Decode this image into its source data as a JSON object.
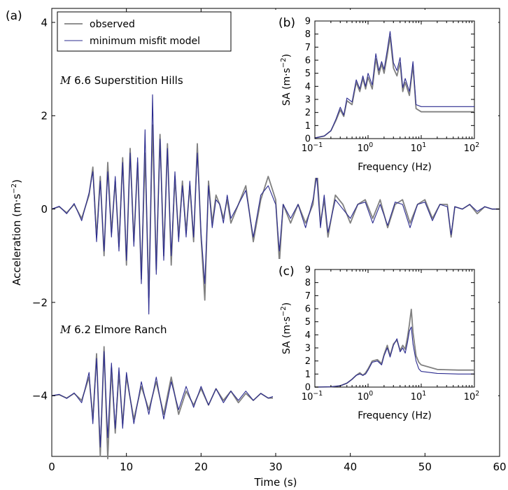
{
  "chart_data": [
    {
      "type": "line",
      "panel_label": "(a)",
      "xlabel": "Time (s)",
      "ylabel_base": "Acceleration (m·s",
      "ylabel_exp": "−2",
      "ylabel_close": ")",
      "xlim": [
        0,
        60
      ],
      "ylim": [
        -5.3,
        4.3
      ],
      "xticks": [
        0,
        10,
        20,
        30,
        40,
        50,
        60
      ],
      "yticks": [
        4,
        2,
        0,
        -2,
        -4
      ],
      "ytick_labels": [
        "4",
        "2",
        "0",
        "−2",
        "−4"
      ],
      "legend": {
        "placement": "top-left",
        "entries": [
          "observed",
          "minimum misfit model"
        ]
      },
      "annotations": [
        {
          "italic": "M",
          "text": " 6.6 Superstition Hills"
        },
        {
          "italic": "M",
          "text": " 6.2 Elmore Ranch"
        }
      ],
      "series": [
        {
          "name": "observed",
          "color": "#808080",
          "record": "Superstition Hills",
          "x": [
            0,
            1,
            2,
            3,
            4,
            5,
            5.5,
            6,
            6.5,
            7,
            7.5,
            8,
            8.5,
            9,
            9.5,
            10,
            10.5,
            11,
            11.5,
            12,
            12.5,
            13,
            13.5,
            14,
            14.5,
            15,
            15.5,
            16,
            16.5,
            17,
            17.5,
            18,
            18.5,
            19,
            19.5,
            20,
            20.5,
            21,
            21.5,
            22,
            22.5,
            23,
            23.5,
            24,
            25,
            26,
            27,
            28,
            29,
            30,
            30.5,
            31,
            32,
            33,
            34,
            35,
            35.5,
            36,
            36.5,
            37,
            38,
            39,
            40,
            41,
            42,
            43,
            44,
            45,
            46,
            47,
            48,
            49,
            50,
            51,
            52,
            53,
            53.5,
            54,
            55,
            56,
            57,
            58,
            59,
            60
          ],
          "y": [
            0,
            0.05,
            -0.08,
            0.1,
            -0.2,
            0.3,
            0.9,
            -0.6,
            0.7,
            -1.0,
            1.0,
            -0.5,
            0.6,
            -0.8,
            1.1,
            -1.2,
            1.3,
            -0.7,
            1.0,
            -1.5,
            1.2,
            -1.9,
            1.8,
            -1.3,
            1.6,
            -1.0,
            1.4,
            -1.2,
            0.7,
            -0.6,
            0.6,
            -0.5,
            0.5,
            -0.7,
            1.4,
            -0.6,
            -1.95,
            0.6,
            -0.3,
            0.3,
            0.1,
            -0.2,
            0.2,
            -0.3,
            0.1,
            0.5,
            -0.7,
            0.2,
            0.7,
            0.2,
            -1.15,
            0.1,
            -0.3,
            0.1,
            -0.3,
            0.1,
            0.9,
            -0.3,
            0.2,
            -0.6,
            0.3,
            0.1,
            -0.3,
            0.1,
            0.2,
            -0.2,
            0.2,
            -0.4,
            0.1,
            0.2,
            -0.3,
            0.1,
            0.2,
            -0.2,
            0.1,
            0.1,
            -0.6,
            0.05,
            0.0,
            0.1,
            -0.1,
            0.05,
            0.0,
            0.0
          ]
        },
        {
          "name": "minimum misfit model",
          "color": "#2b2b8f",
          "record": "Superstition Hills",
          "x": [
            0,
            1,
            2,
            3,
            4,
            5,
            5.5,
            6,
            6.5,
            7,
            7.5,
            8,
            8.5,
            9,
            9.5,
            10,
            10.5,
            11,
            11.5,
            12,
            12.5,
            13,
            13.5,
            14,
            14.5,
            15,
            15.5,
            16,
            16.5,
            17,
            17.5,
            18,
            18.5,
            19,
            19.5,
            20,
            20.5,
            21,
            21.5,
            22,
            22.5,
            23,
            23.5,
            24,
            25,
            26,
            27,
            28,
            29,
            30,
            30.5,
            31,
            32,
            33,
            34,
            35,
            35.5,
            36,
            36.5,
            37,
            38,
            39,
            40,
            41,
            42,
            43,
            44,
            45,
            46,
            47,
            48,
            49,
            50,
            51,
            52,
            53,
            53.5,
            54,
            55,
            56,
            57,
            58,
            59,
            60
          ],
          "y": [
            0,
            0.06,
            -0.1,
            0.12,
            -0.25,
            0.35,
            0.8,
            -0.7,
            0.6,
            -0.9,
            0.8,
            -0.6,
            0.7,
            -0.9,
            1.0,
            -1.1,
            1.2,
            -0.8,
            1.1,
            -1.6,
            1.7,
            -2.25,
            2.45,
            -1.4,
            1.5,
            -1.1,
            1.3,
            -1.0,
            0.8,
            -0.7,
            0.5,
            -0.6,
            0.6,
            -0.6,
            1.2,
            -0.5,
            -1.6,
            0.5,
            -0.4,
            0.2,
            0.1,
            -0.3,
            0.3,
            -0.2,
            0.1,
            0.4,
            -0.6,
            0.3,
            0.5,
            0.1,
            -0.9,
            0.1,
            -0.2,
            0.1,
            -0.4,
            0.2,
            0.7,
            -0.4,
            0.3,
            -0.5,
            0.2,
            0.0,
            -0.2,
            0.1,
            0.15,
            -0.3,
            0.1,
            -0.35,
            0.15,
            0.1,
            -0.4,
            0.1,
            0.15,
            -0.25,
            0.1,
            0.05,
            -0.55,
            0.05,
            0.0,
            0.1,
            -0.05,
            0.05,
            0.0,
            0.0
          ]
        },
        {
          "name": "observed",
          "color": "#808080",
          "record": "Elmore Ranch",
          "x": [
            0,
            1,
            2,
            3,
            4,
            5,
            5.5,
            6,
            6.5,
            7,
            7.5,
            8,
            8.5,
            9,
            9.5,
            10,
            11,
            12,
            13,
            14,
            15,
            16,
            17,
            18,
            19,
            20,
            21,
            22,
            23,
            24,
            25,
            26,
            27,
            28,
            29,
            30
          ],
          "y": [
            -4.0,
            -3.98,
            -4.05,
            -3.95,
            -4.1,
            -3.6,
            -4.5,
            -3.1,
            -5.3,
            -2.95,
            -5.35,
            -3.4,
            -4.8,
            -3.5,
            -4.6,
            -3.6,
            -4.5,
            -3.8,
            -4.3,
            -3.7,
            -4.4,
            -3.6,
            -4.4,
            -3.9,
            -4.2,
            -3.85,
            -4.2,
            -3.85,
            -4.1,
            -3.9,
            -4.15,
            -3.95,
            -4.1,
            -3.95,
            -4.05,
            -4.05
          ]
        },
        {
          "name": "minimum misfit model",
          "color": "#2b2b8f",
          "record": "Elmore Ranch",
          "x": [
            0,
            1,
            2,
            3,
            4,
            5,
            5.5,
            6,
            6.5,
            7,
            7.5,
            8,
            8.5,
            9,
            9.5,
            10,
            11,
            12,
            13,
            14,
            15,
            16,
            17,
            18,
            19,
            20,
            21,
            22,
            23,
            24,
            25,
            26,
            27,
            28,
            29,
            30
          ],
          "y": [
            -4.0,
            -3.97,
            -4.06,
            -3.94,
            -4.15,
            -3.5,
            -4.6,
            -3.2,
            -5.1,
            -3.05,
            -4.9,
            -3.3,
            -4.7,
            -3.4,
            -4.7,
            -3.5,
            -4.6,
            -3.7,
            -4.4,
            -3.6,
            -4.5,
            -3.7,
            -4.3,
            -3.8,
            -4.25,
            -3.8,
            -4.2,
            -3.85,
            -4.15,
            -3.9,
            -4.1,
            -3.9,
            -4.1,
            -3.95,
            -4.05,
            -4.0
          ]
        }
      ]
    },
    {
      "type": "line",
      "panel_label": "(b)",
      "xlabel": "Frequency (Hz)",
      "ylabel_base": "SA (m·s",
      "ylabel_exp": "−2",
      "ylabel_close": ")",
      "xscale": "log",
      "xlim": [
        0.1,
        100
      ],
      "ylim": [
        0,
        9
      ],
      "xtick_values": [
        0.1,
        1,
        10,
        100
      ],
      "xtick_mantissa": [
        "10",
        "10",
        "10",
        "10"
      ],
      "xtick_exp": [
        "−1",
        "0",
        "1",
        "2"
      ],
      "yticks": [
        0,
        1,
        2,
        3,
        4,
        5,
        6,
        7,
        8,
        9
      ],
      "series": [
        {
          "name": "observed",
          "color": "#808080",
          "x": [
            0.1,
            0.15,
            0.2,
            0.25,
            0.3,
            0.35,
            0.4,
            0.5,
            0.6,
            0.7,
            0.8,
            0.9,
            1.0,
            1.2,
            1.4,
            1.6,
            1.8,
            2.0,
            2.3,
            2.6,
            3.0,
            3.5,
            4.0,
            4.5,
            5.0,
            6.0,
            7.0,
            8.0,
            10,
            20,
            50,
            100
          ],
          "y": [
            0.05,
            0.2,
            0.6,
            1.4,
            2.2,
            1.7,
            2.9,
            2.6,
            4.3,
            3.6,
            4.6,
            3.8,
            4.7,
            3.8,
            6.1,
            4.9,
            5.7,
            5.0,
            6.4,
            7.8,
            5.4,
            4.8,
            5.8,
            3.6,
            4.3,
            3.3,
            5.6,
            2.3,
            2.05,
            2.05,
            2.05,
            2.05
          ]
        },
        {
          "name": "minimum misfit model",
          "color": "#2b2b8f",
          "x": [
            0.1,
            0.15,
            0.2,
            0.25,
            0.3,
            0.35,
            0.4,
            0.5,
            0.6,
            0.7,
            0.8,
            0.9,
            1.0,
            1.2,
            1.4,
            1.6,
            1.8,
            2.0,
            2.3,
            2.6,
            3.0,
            3.5,
            4.0,
            4.5,
            5.0,
            6.0,
            7.0,
            8.0,
            10,
            20,
            50,
            100
          ],
          "y": [
            0.05,
            0.2,
            0.6,
            1.5,
            2.4,
            1.8,
            3.1,
            2.8,
            4.5,
            3.8,
            4.8,
            4.0,
            5.0,
            4.1,
            6.5,
            5.2,
            5.9,
            5.3,
            6.8,
            8.2,
            5.8,
            5.2,
            6.2,
            3.9,
            4.6,
            3.6,
            5.9,
            2.6,
            2.45,
            2.45,
            2.45,
            2.45
          ]
        }
      ]
    },
    {
      "type": "line",
      "panel_label": "(c)",
      "xlabel": "Frequency (Hz)",
      "ylabel_base": "SA (m·s",
      "ylabel_exp": "−2",
      "ylabel_close": ")",
      "xscale": "log",
      "xlim": [
        0.1,
        100
      ],
      "ylim": [
        0,
        9
      ],
      "xtick_values": [
        0.1,
        1,
        10,
        100
      ],
      "xtick_mantissa": [
        "10",
        "10",
        "10",
        "10"
      ],
      "xtick_exp": [
        "−1",
        "0",
        "1",
        "2"
      ],
      "yticks": [
        0,
        1,
        2,
        3,
        4,
        5,
        6,
        7,
        8,
        9
      ],
      "series": [
        {
          "name": "observed",
          "color": "#808080",
          "x": [
            0.1,
            0.2,
            0.3,
            0.4,
            0.5,
            0.6,
            0.7,
            0.8,
            0.9,
            1.0,
            1.2,
            1.5,
            1.8,
            2.0,
            2.3,
            2.6,
            3.0,
            3.5,
            4.0,
            4.5,
            5.0,
            5.5,
            6.0,
            6.5,
            7.0,
            8.0,
            9.0,
            10,
            20,
            50,
            100
          ],
          "y": [
            0.0,
            0.02,
            0.1,
            0.3,
            0.6,
            0.9,
            1.1,
            0.9,
            1.1,
            1.4,
            2.0,
            2.1,
            1.8,
            2.5,
            3.2,
            2.4,
            3.3,
            3.6,
            2.8,
            3.2,
            2.9,
            3.8,
            4.8,
            5.95,
            4.2,
            2.4,
            1.9,
            1.7,
            1.35,
            1.3,
            1.3
          ]
        },
        {
          "name": "minimum misfit model",
          "color": "#2b2b8f",
          "x": [
            0.1,
            0.2,
            0.3,
            0.4,
            0.5,
            0.6,
            0.7,
            0.8,
            0.9,
            1.0,
            1.2,
            1.5,
            1.8,
            2.0,
            2.3,
            2.6,
            3.0,
            3.5,
            4.0,
            4.5,
            5.0,
            5.5,
            6.0,
            6.5,
            7.0,
            8.0,
            9.0,
            10,
            20,
            50,
            100
          ],
          "y": [
            0.0,
            0.02,
            0.1,
            0.3,
            0.6,
            0.9,
            1.0,
            0.9,
            1.0,
            1.3,
            1.9,
            2.0,
            1.7,
            2.4,
            3.0,
            2.3,
            3.2,
            3.7,
            2.7,
            3.0,
            2.6,
            3.4,
            4.3,
            4.6,
            3.3,
            2.0,
            1.4,
            1.2,
            1.05,
            1.0,
            1.0
          ]
        }
      ]
    }
  ]
}
